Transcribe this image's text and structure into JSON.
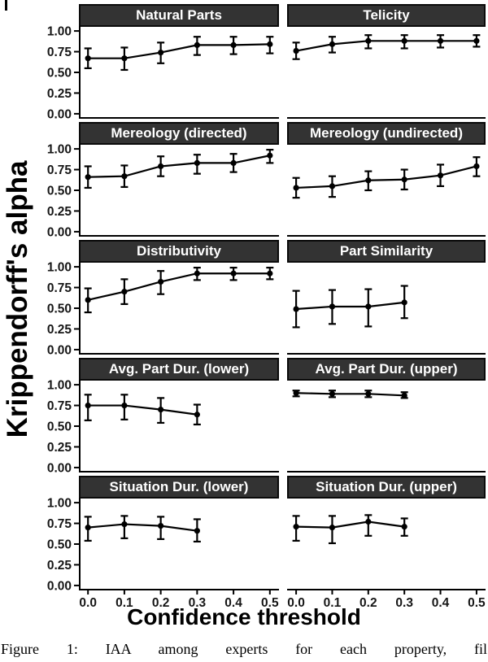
{
  "figure": {
    "y_axis_title": "Krippendorff's alpha",
    "x_axis_title": "Confidence threshold",
    "caption": "Figure 1: IAA among experts for each property, fil",
    "colors": {
      "strip_bg": "#333333",
      "strip_border": "#0a0a0a",
      "strip_text": "#ffffff",
      "line": "#000000",
      "axis_text": "#161616"
    }
  },
  "axes": {
    "y_ticks": [
      1.0,
      0.75,
      0.5,
      0.25,
      0.0
    ],
    "y_tick_labels": [
      "1.00",
      "0.75",
      "0.50",
      "0.25",
      "0.00"
    ],
    "x_ticks": [
      0.0,
      0.1,
      0.2,
      0.3,
      0.4,
      0.5
    ],
    "x_tick_labels": [
      "0.0",
      "0.1",
      "0.2",
      "0.3",
      "0.4",
      "0.5"
    ]
  },
  "chart_data": [
    {
      "title": "Natural Parts",
      "type": "line",
      "row": 0,
      "col": 0,
      "xlim": [
        0,
        0.5
      ],
      "ylim": [
        0,
        1
      ],
      "x": [
        0.0,
        0.1,
        0.2,
        0.3,
        0.4,
        0.5
      ],
      "y": [
        0.67,
        0.67,
        0.74,
        0.83,
        0.83,
        0.84
      ],
      "err_low": [
        0.55,
        0.53,
        0.61,
        0.71,
        0.72,
        0.73
      ],
      "err_high": [
        0.79,
        0.8,
        0.86,
        0.93,
        0.93,
        0.93
      ]
    },
    {
      "title": "Telicity",
      "type": "line",
      "row": 0,
      "col": 1,
      "xlim": [
        0,
        0.5
      ],
      "ylim": [
        0,
        1
      ],
      "x": [
        0.0,
        0.1,
        0.2,
        0.3,
        0.4,
        0.5
      ],
      "y": [
        0.76,
        0.84,
        0.88,
        0.88,
        0.88,
        0.88
      ],
      "err_low": [
        0.66,
        0.74,
        0.79,
        0.79,
        0.8,
        0.81
      ],
      "err_high": [
        0.86,
        0.93,
        0.95,
        0.95,
        0.95,
        0.95
      ]
    },
    {
      "title": "Mereology (directed)",
      "type": "line",
      "row": 1,
      "col": 0,
      "xlim": [
        0,
        0.5
      ],
      "ylim": [
        0,
        1
      ],
      "x": [
        0.0,
        0.1,
        0.2,
        0.3,
        0.4,
        0.5
      ],
      "y": [
        0.66,
        0.67,
        0.79,
        0.83,
        0.83,
        0.92
      ],
      "err_low": [
        0.53,
        0.54,
        0.67,
        0.7,
        0.72,
        0.83
      ],
      "err_high": [
        0.79,
        0.8,
        0.91,
        0.93,
        0.94,
        0.99
      ]
    },
    {
      "title": "Mereology (undirected)",
      "type": "line",
      "row": 1,
      "col": 1,
      "xlim": [
        0,
        0.5
      ],
      "ylim": [
        0,
        1
      ],
      "x": [
        0.0,
        0.1,
        0.2,
        0.3,
        0.4,
        0.5
      ],
      "y": [
        0.53,
        0.55,
        0.62,
        0.63,
        0.68,
        0.79
      ],
      "err_low": [
        0.41,
        0.42,
        0.5,
        0.51,
        0.55,
        0.67
      ],
      "err_high": [
        0.65,
        0.67,
        0.73,
        0.75,
        0.81,
        0.9
      ]
    },
    {
      "title": "Distributivity",
      "type": "line",
      "row": 2,
      "col": 0,
      "xlim": [
        0,
        0.5
      ],
      "ylim": [
        0,
        1
      ],
      "x": [
        0.0,
        0.1,
        0.2,
        0.3,
        0.4,
        0.5
      ],
      "y": [
        0.6,
        0.7,
        0.82,
        0.92,
        0.92,
        0.92
      ],
      "err_low": [
        0.45,
        0.55,
        0.67,
        0.84,
        0.84,
        0.85
      ],
      "err_high": [
        0.74,
        0.85,
        0.95,
        0.99,
        0.99,
        0.99
      ]
    },
    {
      "title": "Part Similarity",
      "type": "line",
      "row": 2,
      "col": 1,
      "xlim": [
        0,
        0.5
      ],
      "ylim": [
        0,
        1
      ],
      "x": [
        0.0,
        0.1,
        0.2,
        0.3
      ],
      "y": [
        0.49,
        0.52,
        0.52,
        0.57
      ],
      "err_low": [
        0.27,
        0.31,
        0.28,
        0.38
      ],
      "err_high": [
        0.71,
        0.72,
        0.73,
        0.77
      ]
    },
    {
      "title": "Avg. Part Dur. (lower)",
      "type": "line",
      "row": 3,
      "col": 0,
      "xlim": [
        0,
        0.5
      ],
      "ylim": [
        0,
        1
      ],
      "x": [
        0.0,
        0.1,
        0.2,
        0.3
      ],
      "y": [
        0.75,
        0.75,
        0.7,
        0.64
      ],
      "err_low": [
        0.57,
        0.58,
        0.54,
        0.52
      ],
      "err_high": [
        0.88,
        0.88,
        0.84,
        0.76
      ]
    },
    {
      "title": "Avg. Part Dur. (upper)",
      "type": "line",
      "row": 3,
      "col": 1,
      "xlim": [
        0,
        0.5
      ],
      "ylim": [
        0,
        1
      ],
      "x": [
        0.0,
        0.1,
        0.2,
        0.3
      ],
      "y": [
        0.9,
        0.89,
        0.89,
        0.87
      ],
      "err_low": [
        0.86,
        0.85,
        0.85,
        0.84
      ],
      "err_high": [
        0.93,
        0.93,
        0.93,
        0.91
      ]
    },
    {
      "title": "Situation Dur. (lower)",
      "type": "line",
      "row": 4,
      "col": 0,
      "xlim": [
        0,
        0.5
      ],
      "ylim": [
        0,
        1
      ],
      "x": [
        0.0,
        0.1,
        0.2,
        0.3
      ],
      "y": [
        0.7,
        0.74,
        0.72,
        0.66
      ],
      "err_low": [
        0.54,
        0.57,
        0.56,
        0.53
      ],
      "err_high": [
        0.83,
        0.84,
        0.83,
        0.8
      ]
    },
    {
      "title": "Situation Dur. (upper)",
      "type": "line",
      "row": 4,
      "col": 1,
      "xlim": [
        0,
        0.5
      ],
      "ylim": [
        0,
        1
      ],
      "x": [
        0.0,
        0.1,
        0.2,
        0.3
      ],
      "y": [
        0.71,
        0.7,
        0.77,
        0.71
      ],
      "err_low": [
        0.54,
        0.51,
        0.6,
        0.6
      ],
      "err_high": [
        0.84,
        0.84,
        0.85,
        0.81
      ]
    }
  ]
}
